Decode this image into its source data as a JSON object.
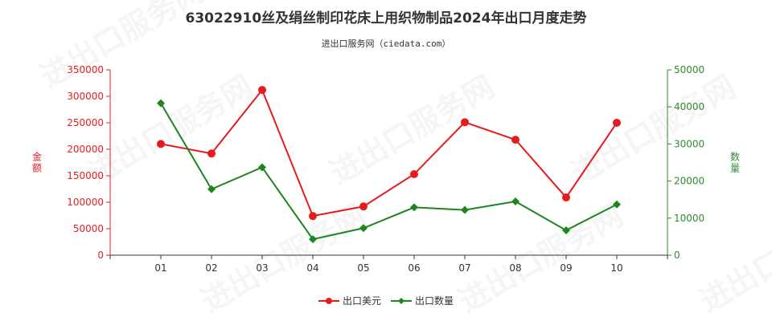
{
  "chart_data": {
    "type": "line",
    "title": "63022910丝及绢丝制印花床上用织物制品2024年出口月度走势",
    "subtitle": "进出口服务网（ciedata.com）",
    "categories": [
      "01",
      "02",
      "03",
      "04",
      "05",
      "06",
      "07",
      "08",
      "09",
      "10"
    ],
    "y_left": {
      "label": "金额",
      "range": [
        0,
        350000
      ],
      "ticks": [
        "0",
        "50000",
        "100000",
        "150000",
        "200000",
        "250000",
        "300000",
        "350000"
      ],
      "color": "#e02020"
    },
    "y_right": {
      "label": "数量",
      "range": [
        0,
        50000
      ],
      "ticks": [
        "0",
        "10000",
        "20000",
        "30000",
        "40000",
        "50000"
      ],
      "color": "#2e8b2e"
    },
    "series": [
      {
        "name": "出口美元",
        "axis": "left",
        "color": "#e61c1c",
        "marker": "circle",
        "values": [
          210000,
          192000,
          312000,
          74000,
          92000,
          153000,
          251000,
          218000,
          109000,
          250000
        ]
      },
      {
        "name": "出口数量",
        "axis": "right",
        "color": "#1e861e",
        "marker": "diamond",
        "values": [
          41000,
          17800,
          23700,
          4300,
          7300,
          12900,
          12200,
          14500,
          6700,
          13700
        ]
      }
    ],
    "grid": false,
    "legend": "bottom-center",
    "watermark": "进出口服务网"
  }
}
